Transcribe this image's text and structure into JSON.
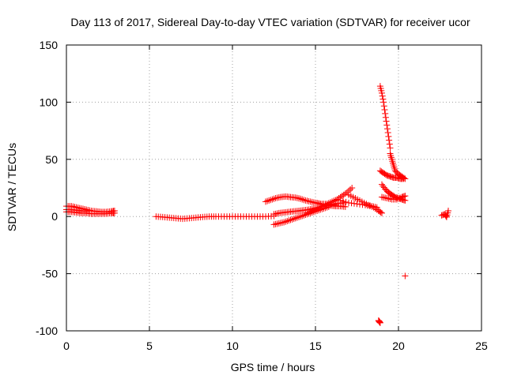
{
  "chart_data": {
    "type": "scatter",
    "title": "Day 113 of 2017, Sidereal Day-to-day VTEC variation (SDTVAR) for receiver ucor",
    "xlabel": "GPS time / hours",
    "ylabel": "SDTVAR / TECUs",
    "xlim": [
      0,
      25
    ],
    "ylim": [
      -100,
      150
    ],
    "x_ticks": [
      0,
      5,
      10,
      15,
      20,
      25
    ],
    "y_ticks": [
      -100,
      -50,
      0,
      50,
      100,
      150
    ],
    "x_tick_labels": [
      "0",
      "5",
      "10",
      "15",
      "20",
      "25"
    ],
    "y_tick_labels": [
      "-100",
      "-50",
      "0",
      "50",
      "100",
      "150"
    ],
    "grid": true,
    "marker": "+",
    "series": [
      {
        "name": "SDTVAR",
        "color": "#ff0000",
        "segments": [
          {
            "x": [
              0.0,
              0.3,
              0.6,
              0.9,
              1.2,
              1.5,
              1.8,
              2.1,
              2.4,
              2.7,
              2.9
            ],
            "y": [
              9,
              9,
              8,
              7,
              6,
              5,
              4.5,
              4,
              4,
              4.5,
              5
            ]
          },
          {
            "x": [
              0.0,
              0.3,
              0.6,
              0.9,
              1.2,
              1.5,
              1.8,
              2.1,
              2.4,
              2.7,
              2.9
            ],
            "y": [
              4,
              4,
              3.5,
              3,
              3,
              2.5,
              2.5,
              2.5,
              2.5,
              3,
              3
            ]
          },
          {
            "x": [
              0.0,
              0.3,
              0.6,
              0.9,
              1.2
            ],
            "y": [
              6,
              6,
              5.5,
              5,
              4.5
            ]
          },
          {
            "x": [
              5.4,
              5.8,
              6.2,
              6.6,
              7.0,
              7.4,
              7.8,
              8.2,
              8.6,
              9.0,
              9.5,
              10.0,
              10.5,
              11.0,
              11.5,
              12.0,
              12.5
            ],
            "y": [
              0,
              -0.5,
              -1,
              -1.5,
              -2,
              -1.5,
              -1,
              -0.5,
              0,
              0,
              0,
              0,
              0,
              0,
              0,
              0,
              0.5
            ]
          },
          {
            "x": [
              12.0,
              12.3,
              12.6,
              12.9,
              13.2,
              13.5,
              13.8,
              14.1,
              14.4,
              14.7,
              15.0,
              15.3,
              15.6,
              15.9,
              16.2
            ],
            "y": [
              13,
              14.5,
              16,
              17,
              17.5,
              17,
              16.5,
              15.5,
              14,
              13,
              12,
              11,
              11,
              10.5,
              10
            ]
          },
          {
            "x": [
              12.5,
              12.8,
              13.1,
              13.4,
              13.7,
              14.0,
              14.3,
              14.6,
              14.9,
              15.2,
              15.5,
              15.8,
              16.1,
              16.4,
              16.7
            ],
            "y": [
              2,
              3,
              3.5,
              4,
              4.5,
              5,
              5.5,
              6,
              7,
              8,
              9,
              10,
              11,
              11.5,
              12
            ]
          },
          {
            "x": [
              12.5,
              12.8,
              13.1,
              13.4,
              13.7,
              14.0,
              14.3,
              14.6,
              14.9,
              15.2,
              15.5,
              15.8
            ],
            "y": [
              -7,
              -6,
              -5,
              -3.5,
              -2,
              -0.5,
              1,
              2.5,
              4,
              5.5,
              7,
              8.5
            ]
          },
          {
            "x": [
              14.5,
              14.8,
              15.1,
              15.4,
              15.7,
              16.0,
              16.3,
              16.6,
              16.9,
              17.2
            ],
            "y": [
              3,
              5,
              7,
              9,
              11,
              13,
              15,
              18,
              21,
              25
            ]
          },
          {
            "x": [
              15.0,
              15.3,
              15.6,
              15.9,
              16.2,
              16.5,
              16.8
            ],
            "y": [
              12,
              11,
              10,
              9.5,
              9,
              9,
              8.5
            ]
          },
          {
            "x": [
              16.5,
              17.0,
              17.5,
              18.0,
              18.4,
              18.7
            ],
            "y": [
              14,
              12,
              11,
              10,
              9,
              8
            ]
          },
          {
            "x": [
              17.0,
              17.4,
              17.8,
              18.2,
              18.5,
              18.8,
              19.0
            ],
            "y": [
              19,
              16,
              13,
              10,
              8,
              5,
              3
            ]
          },
          {
            "x": [
              18.9,
              19.0,
              19.1,
              19.2,
              19.3,
              19.4,
              19.5
            ],
            "y": [
              114,
              108,
              100,
              90,
              80,
              70,
              60
            ]
          },
          {
            "x": [
              19.5,
              19.6,
              19.7,
              19.8,
              20.0,
              20.2,
              20.4
            ],
            "y": [
              55,
              50,
              45,
              40,
              37,
              35,
              33
            ]
          },
          {
            "x": [
              18.9,
              19.1,
              19.3,
              19.5,
              19.7,
              19.9,
              20.1,
              20.3
            ],
            "y": [
              40,
              38,
              36,
              35,
              34,
              34,
              33,
              33
            ]
          },
          {
            "x": [
              19.0,
              19.2,
              19.4,
              19.6,
              19.8,
              20.0,
              20.2,
              20.4
            ],
            "y": [
              28,
              24,
              21,
              19,
              17,
              16,
              15,
              14
            ]
          },
          {
            "x": [
              19.0,
              19.3,
              19.6,
              19.9,
              20.2,
              20.4
            ],
            "y": [
              17,
              16,
              15,
              15,
              17,
              18
            ]
          },
          {
            "x": [
              18.8,
              18.85,
              18.9
            ],
            "y": [
              -91,
              -92,
              -93
            ]
          },
          {
            "x": [
              20.4
            ],
            "y": [
              -52
            ]
          },
          {
            "x": [
              22.6,
              22.8,
              22.9,
              23.0
            ],
            "y": [
              1,
              2,
              -0.5,
              5
            ]
          }
        ]
      }
    ]
  }
}
